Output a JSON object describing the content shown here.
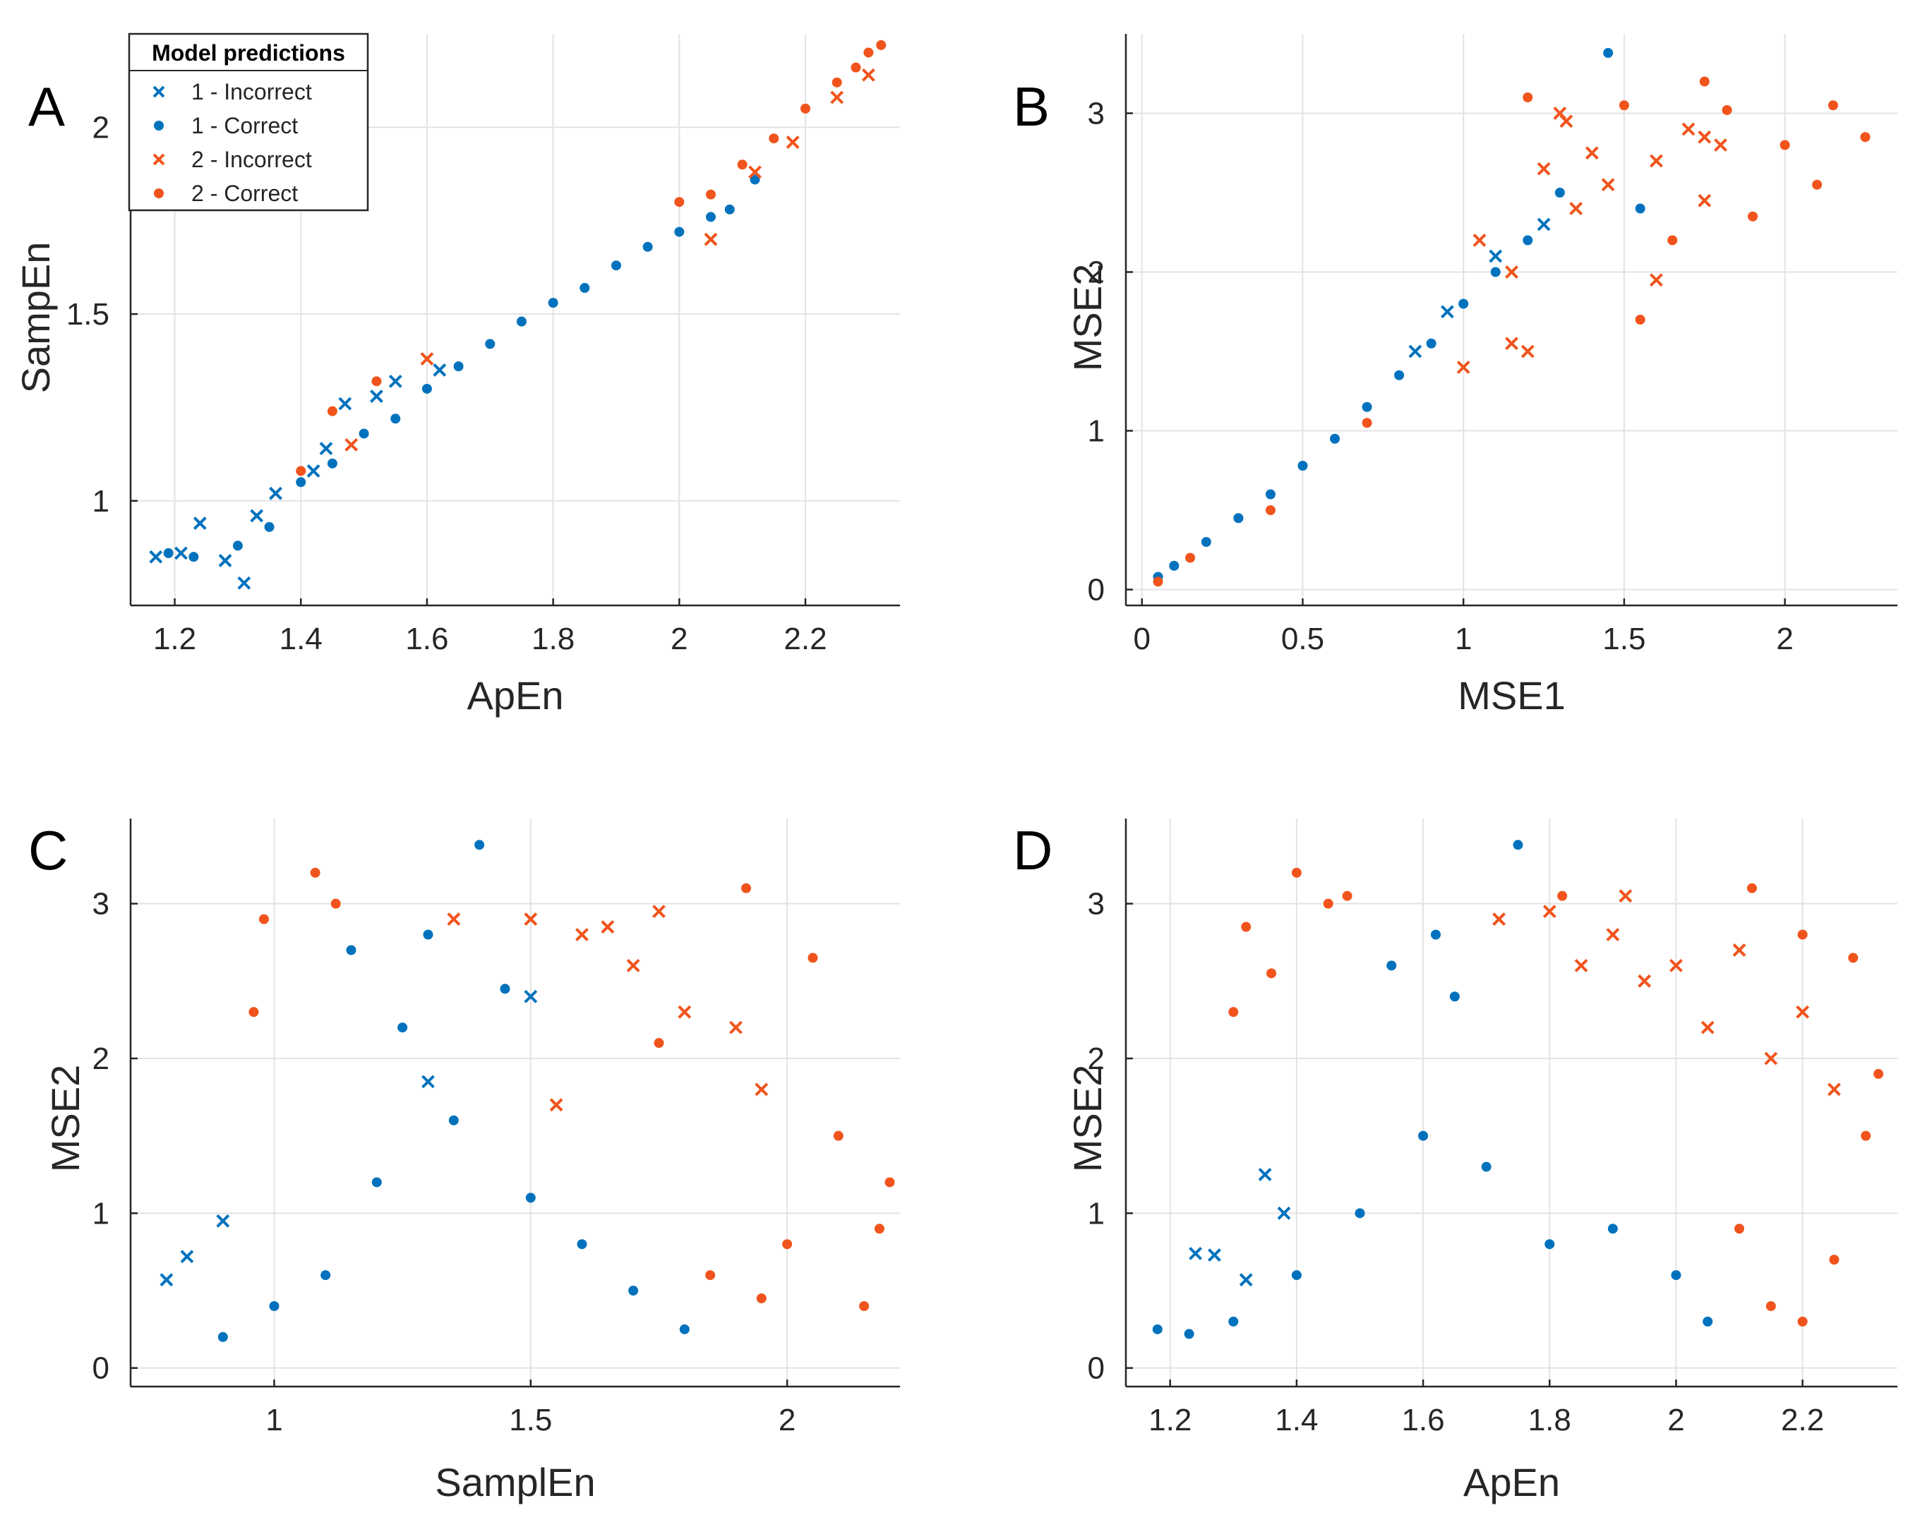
{
  "colors": {
    "class1": "#0072BD",
    "class2": "#F0541C",
    "axis": "#262626",
    "grid": "#e3e3e3"
  },
  "legend": {
    "title": "Model predictions",
    "entries": [
      {
        "label": "1 - Incorrect",
        "series": "1-incorrect",
        "marker": "x"
      },
      {
        "label": "1 - Correct",
        "series": "1-correct",
        "marker": "dot"
      },
      {
        "label": "2 - Incorrect",
        "series": "2-incorrect",
        "marker": "x"
      },
      {
        "label": "2 - Correct",
        "series": "2-correct",
        "marker": "dot"
      }
    ]
  },
  "chart_data": [
    {
      "panel": "A",
      "type": "scatter",
      "xlabel": "ApEn",
      "ylabel": "SampEn",
      "xlim": [
        1.13,
        2.35
      ],
      "ylim": [
        0.72,
        2.25
      ],
      "xticks": [
        1.2,
        1.4,
        1.6,
        1.8,
        2,
        2.2
      ],
      "xtick_labels": [
        "1.2",
        "1.4",
        "1.6",
        "1.8",
        "2",
        "2.2"
      ],
      "yticks": [
        1,
        1.5,
        2
      ],
      "ytick_labels": [
        "1",
        "1.5",
        "2"
      ],
      "series": [
        {
          "name": "1 - Incorrect",
          "marker": "x",
          "points": [
            [
              1.17,
              0.85
            ],
            [
              1.21,
              0.86
            ],
            [
              1.24,
              0.94
            ],
            [
              1.28,
              0.84
            ],
            [
              1.31,
              0.78
            ],
            [
              1.33,
              0.96
            ],
            [
              1.42,
              1.08
            ],
            [
              1.47,
              1.26
            ],
            [
              1.55,
              1.32
            ],
            [
              1.44,
              1.14
            ],
            [
              1.62,
              1.35
            ],
            [
              1.36,
              1.02
            ],
            [
              1.52,
              1.28
            ]
          ]
        },
        {
          "name": "1 - Correct",
          "marker": "dot",
          "points": [
            [
              1.19,
              0.86
            ],
            [
              1.23,
              0.85
            ],
            [
              1.3,
              0.88
            ],
            [
              1.35,
              0.93
            ],
            [
              1.4,
              1.05
            ],
            [
              1.45,
              1.1
            ],
            [
              1.5,
              1.18
            ],
            [
              1.55,
              1.22
            ],
            [
              1.6,
              1.3
            ],
            [
              1.65,
              1.36
            ],
            [
              1.7,
              1.42
            ],
            [
              1.75,
              1.48
            ],
            [
              1.8,
              1.53
            ],
            [
              1.85,
              1.57
            ],
            [
              1.9,
              1.63
            ],
            [
              1.95,
              1.68
            ],
            [
              2.0,
              1.72
            ],
            [
              2.05,
              1.76
            ],
            [
              2.08,
              1.78
            ],
            [
              2.12,
              1.86
            ]
          ]
        },
        {
          "name": "2 - Incorrect",
          "marker": "x",
          "points": [
            [
              2.12,
              1.88
            ],
            [
              2.18,
              1.96
            ],
            [
              2.25,
              2.08
            ],
            [
              2.3,
              2.14
            ],
            [
              2.05,
              1.7
            ],
            [
              1.48,
              1.15
            ],
            [
              1.6,
              1.38
            ]
          ]
        },
        {
          "name": "2 - Correct",
          "marker": "dot",
          "points": [
            [
              1.4,
              1.08
            ],
            [
              1.45,
              1.24
            ],
            [
              1.52,
              1.32
            ],
            [
              2.0,
              1.8
            ],
            [
              2.05,
              1.82
            ],
            [
              2.1,
              1.9
            ],
            [
              2.15,
              1.97
            ],
            [
              2.2,
              2.05
            ],
            [
              2.25,
              2.12
            ],
            [
              2.3,
              2.2
            ],
            [
              2.32,
              2.22
            ],
            [
              2.28,
              2.16
            ]
          ]
        }
      ]
    },
    {
      "panel": "B",
      "type": "scatter",
      "xlabel": "MSE1",
      "ylabel": "MSE2",
      "xlim": [
        -0.05,
        2.35
      ],
      "ylim": [
        -0.1,
        3.5
      ],
      "xticks": [
        0,
        0.5,
        1,
        1.5,
        2
      ],
      "xtick_labels": [
        "0",
        "0.5",
        "1",
        "1.5",
        "2"
      ],
      "yticks": [
        0,
        1,
        2,
        3
      ],
      "ytick_labels": [
        "0",
        "1",
        "2",
        "3"
      ],
      "series": [
        {
          "name": "1 - Incorrect",
          "marker": "x",
          "points": [
            [
              0.95,
              1.75
            ],
            [
              1.1,
              2.1
            ],
            [
              1.25,
              2.3
            ],
            [
              0.85,
              1.5
            ]
          ]
        },
        {
          "name": "1 - Correct",
          "marker": "dot",
          "points": [
            [
              0.05,
              0.08
            ],
            [
              0.1,
              0.15
            ],
            [
              0.2,
              0.3
            ],
            [
              0.3,
              0.45
            ],
            [
              0.4,
              0.6
            ],
            [
              0.5,
              0.78
            ],
            [
              0.6,
              0.95
            ],
            [
              0.7,
              1.15
            ],
            [
              0.8,
              1.35
            ],
            [
              0.9,
              1.55
            ],
            [
              1.0,
              1.8
            ],
            [
              1.1,
              2.0
            ],
            [
              1.2,
              2.2
            ],
            [
              1.3,
              2.5
            ],
            [
              1.45,
              3.38
            ],
            [
              1.55,
              2.4
            ]
          ]
        },
        {
          "name": "2 - Incorrect",
          "marker": "x",
          "points": [
            [
              1.05,
              2.2
            ],
            [
              1.15,
              2.0
            ],
            [
              1.25,
              2.65
            ],
            [
              1.3,
              3.0
            ],
            [
              1.35,
              2.4
            ],
            [
              1.45,
              2.55
            ],
            [
              1.6,
              2.7
            ],
            [
              1.7,
              2.9
            ],
            [
              1.75,
              2.45
            ],
            [
              1.8,
              2.8
            ],
            [
              1.6,
              1.95
            ],
            [
              1.4,
              2.75
            ],
            [
              1.2,
              1.5
            ],
            [
              1.0,
              1.4
            ],
            [
              1.15,
              1.55
            ],
            [
              1.32,
              2.95
            ],
            [
              1.75,
              2.85
            ]
          ]
        },
        {
          "name": "2 - Correct",
          "marker": "dot",
          "points": [
            [
              0.05,
              0.05
            ],
            [
              0.15,
              0.2
            ],
            [
              0.4,
              0.5
            ],
            [
              0.7,
              1.05
            ],
            [
              1.2,
              3.1
            ],
            [
              1.55,
              1.7
            ],
            [
              1.75,
              3.2
            ],
            [
              1.82,
              3.02
            ],
            [
              2.0,
              2.8
            ],
            [
              2.15,
              3.05
            ],
            [
              2.25,
              2.85
            ],
            [
              2.1,
              2.55
            ],
            [
              1.65,
              2.2
            ],
            [
              1.9,
              2.35
            ],
            [
              1.5,
              3.05
            ]
          ]
        }
      ]
    },
    {
      "panel": "C",
      "type": "scatter",
      "xlabel": "SamplEn",
      "ylabel": "MSE2",
      "xlim": [
        0.72,
        2.22
      ],
      "ylim": [
        -0.12,
        3.55
      ],
      "xticks": [
        1,
        1.5,
        2
      ],
      "xtick_labels": [
        "1",
        "1.5",
        "2"
      ],
      "yticks": [
        0,
        1,
        2,
        3
      ],
      "ytick_labels": [
        "0",
        "1",
        "2",
        "3"
      ],
      "series": [
        {
          "name": "1 - Incorrect",
          "marker": "x",
          "points": [
            [
              0.79,
              0.57
            ],
            [
              0.83,
              0.72
            ],
            [
              0.9,
              0.95
            ],
            [
              1.3,
              1.85
            ],
            [
              1.5,
              2.4
            ]
          ]
        },
        {
          "name": "1 - Correct",
          "marker": "dot",
          "points": [
            [
              0.9,
              0.2
            ],
            [
              1.0,
              0.4
            ],
            [
              1.1,
              0.6
            ],
            [
              1.2,
              1.2
            ],
            [
              1.25,
              2.2
            ],
            [
              1.3,
              2.8
            ],
            [
              1.4,
              3.38
            ],
            [
              1.35,
              1.6
            ],
            [
              1.5,
              1.1
            ],
            [
              1.6,
              0.8
            ],
            [
              1.7,
              0.5
            ],
            [
              1.8,
              0.25
            ],
            [
              1.15,
              2.7
            ],
            [
              1.45,
              2.45
            ]
          ]
        },
        {
          "name": "2 - Incorrect",
          "marker": "x",
          "points": [
            [
              1.35,
              2.9
            ],
            [
              1.5,
              2.9
            ],
            [
              1.6,
              2.8
            ],
            [
              1.7,
              2.6
            ],
            [
              1.8,
              2.3
            ],
            [
              1.9,
              2.2
            ],
            [
              1.95,
              1.8
            ],
            [
              1.75,
              2.95
            ],
            [
              1.65,
              2.85
            ],
            [
              1.55,
              1.7
            ]
          ]
        },
        {
          "name": "2 - Correct",
          "marker": "dot",
          "points": [
            [
              0.96,
              2.3
            ],
            [
              0.98,
              2.9
            ],
            [
              1.08,
              3.2
            ],
            [
              1.12,
              3.0
            ],
            [
              1.92,
              3.1
            ],
            [
              2.05,
              2.65
            ],
            [
              2.1,
              1.5
            ],
            [
              2.2,
              1.2
            ],
            [
              2.15,
              0.4
            ],
            [
              1.95,
              0.45
            ],
            [
              1.85,
              0.6
            ],
            [
              2.0,
              0.8
            ],
            [
              2.18,
              0.9
            ],
            [
              1.75,
              2.1
            ]
          ]
        }
      ]
    },
    {
      "panel": "D",
      "type": "scatter",
      "xlabel": "ApEn",
      "ylabel": "MSE2",
      "xlim": [
        1.13,
        2.35
      ],
      "ylim": [
        -0.12,
        3.55
      ],
      "xticks": [
        1.2,
        1.4,
        1.6,
        1.8,
        2,
        2.2
      ],
      "xtick_labels": [
        "1.2",
        "1.4",
        "1.6",
        "1.8",
        "2",
        "2.2"
      ],
      "yticks": [
        0,
        1,
        2,
        3
      ],
      "ytick_labels": [
        "0",
        "1",
        "2",
        "3"
      ],
      "series": [
        {
          "name": "1 - Incorrect",
          "marker": "x",
          "points": [
            [
              1.24,
              0.74
            ],
            [
              1.27,
              0.73
            ],
            [
              1.35,
              1.25
            ],
            [
              1.32,
              0.57
            ],
            [
              1.38,
              1.0
            ]
          ]
        },
        {
          "name": "1 - Correct",
          "marker": "dot",
          "points": [
            [
              1.18,
              0.25
            ],
            [
              1.23,
              0.22
            ],
            [
              1.3,
              0.3
            ],
            [
              1.4,
              0.6
            ],
            [
              1.5,
              1.0
            ],
            [
              1.6,
              1.5
            ],
            [
              1.65,
              2.4
            ],
            [
              1.75,
              3.38
            ],
            [
              1.7,
              1.3
            ],
            [
              1.8,
              0.8
            ],
            [
              1.9,
              0.9
            ],
            [
              2.0,
              0.6
            ],
            [
              2.05,
              0.3
            ],
            [
              1.55,
              2.6
            ],
            [
              1.62,
              2.8
            ]
          ]
        },
        {
          "name": "2 - Incorrect",
          "marker": "x",
          "points": [
            [
              1.8,
              2.95
            ],
            [
              1.9,
              2.8
            ],
            [
              2.0,
              2.6
            ],
            [
              2.1,
              2.7
            ],
            [
              2.2,
              2.3
            ],
            [
              2.15,
              2.0
            ],
            [
              2.25,
              1.8
            ],
            [
              2.05,
              2.2
            ],
            [
              1.95,
              2.5
            ],
            [
              1.85,
              2.6
            ],
            [
              1.72,
              2.9
            ],
            [
              1.92,
              3.05
            ]
          ]
        },
        {
          "name": "2 - Correct",
          "marker": "dot",
          "points": [
            [
              1.3,
              2.3
            ],
            [
              1.32,
              2.85
            ],
            [
              1.36,
              2.55
            ],
            [
              1.4,
              3.2
            ],
            [
              1.45,
              3.0
            ],
            [
              1.48,
              3.05
            ],
            [
              1.82,
              3.05
            ],
            [
              2.12,
              3.1
            ],
            [
              2.2,
              2.8
            ],
            [
              2.28,
              2.65
            ],
            [
              2.32,
              1.9
            ],
            [
              2.3,
              1.5
            ],
            [
              2.25,
              0.7
            ],
            [
              2.15,
              0.4
            ],
            [
              2.1,
              0.9
            ],
            [
              2.2,
              0.3
            ]
          ]
        }
      ]
    }
  ],
  "panel_labels": [
    "A",
    "B",
    "C",
    "D"
  ]
}
